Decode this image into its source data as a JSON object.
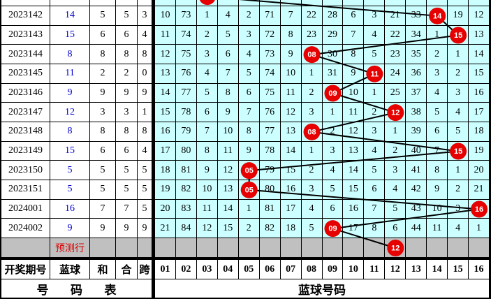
{
  "colors": {
    "grid_bg": "#ccffff",
    "row_bg": "#ffffff",
    "prediction_bg": "#c0c0c0",
    "circle_fill": "#e60000",
    "circle_text": "#ffffff",
    "blue_value_text": "#0000cc",
    "prediction_text": "#dd0000",
    "line": "#000000",
    "border": "#000000",
    "text": "#000000"
  },
  "header": {
    "period": "开奖期号",
    "blue": "蓝球",
    "sum": "和",
    "he": "合",
    "span": "跨",
    "balls": [
      "01",
      "02",
      "03",
      "04",
      "05",
      "06",
      "07",
      "08",
      "09",
      "10",
      "11",
      "12",
      "13",
      "14",
      "15",
      "16"
    ]
  },
  "footer": {
    "left": "号 码 表",
    "right": "蓝球号码"
  },
  "partial_top_row": {
    "hit_col": 3
  },
  "rows": [
    {
      "period": "2023142",
      "blue": "14",
      "sum": "5",
      "he": "5",
      "span": "3",
      "hit_col": 14,
      "hit_label": "14",
      "cells": [
        "10",
        "73",
        "1",
        "4",
        "2",
        "71",
        "7",
        "22",
        "28",
        "6",
        "3",
        "21",
        "33",
        "14",
        "19",
        "12"
      ]
    },
    {
      "period": "2023143",
      "blue": "15",
      "sum": "6",
      "he": "6",
      "span": "4",
      "hit_col": 15,
      "hit_label": "15",
      "cells": [
        "11",
        "74",
        "2",
        "5",
        "3",
        "72",
        "8",
        "23",
        "29",
        "7",
        "4",
        "22",
        "34",
        "1",
        "15",
        "13"
      ]
    },
    {
      "period": "2023144",
      "blue": "8",
      "sum": "8",
      "he": "8",
      "span": "8",
      "hit_col": 8,
      "hit_label": "08",
      "cells": [
        "12",
        "75",
        "3",
        "6",
        "4",
        "73",
        "9",
        "08",
        "30",
        "8",
        "5",
        "23",
        "35",
        "2",
        "1",
        "14"
      ]
    },
    {
      "period": "2023145",
      "blue": "11",
      "sum": "2",
      "he": "2",
      "span": "0",
      "hit_col": 11,
      "hit_label": "11",
      "cells": [
        "13",
        "76",
        "4",
        "7",
        "5",
        "74",
        "10",
        "1",
        "31",
        "9",
        "11",
        "24",
        "36",
        "3",
        "2",
        "15"
      ]
    },
    {
      "period": "2023146",
      "blue": "9",
      "sum": "9",
      "he": "9",
      "span": "9",
      "hit_col": 9,
      "hit_label": "09",
      "cells": [
        "14",
        "77",
        "5",
        "8",
        "6",
        "75",
        "11",
        "2",
        "09",
        "10",
        "1",
        "25",
        "37",
        "4",
        "3",
        "16"
      ]
    },
    {
      "period": "2023147",
      "blue": "12",
      "sum": "3",
      "he": "3",
      "span": "1",
      "hit_col": 12,
      "hit_label": "12",
      "cells": [
        "15",
        "78",
        "6",
        "9",
        "7",
        "76",
        "12",
        "3",
        "1",
        "11",
        "2",
        "12",
        "38",
        "5",
        "4",
        "17"
      ]
    },
    {
      "period": "2023148",
      "blue": "8",
      "sum": "8",
      "he": "8",
      "span": "8",
      "hit_col": 8,
      "hit_label": "08",
      "cells": [
        "16",
        "79",
        "7",
        "10",
        "8",
        "77",
        "13",
        "08",
        "2",
        "12",
        "3",
        "1",
        "39",
        "6",
        "5",
        "18"
      ]
    },
    {
      "period": "2023149",
      "blue": "15",
      "sum": "6",
      "he": "6",
      "span": "4",
      "hit_col": 15,
      "hit_label": "15",
      "cells": [
        "17",
        "80",
        "8",
        "11",
        "9",
        "78",
        "14",
        "1",
        "3",
        "13",
        "4",
        "2",
        "40",
        "7",
        "15",
        "19"
      ]
    },
    {
      "period": "2023150",
      "blue": "5",
      "sum": "5",
      "he": "5",
      "span": "5",
      "hit_col": 5,
      "hit_label": "05",
      "cells": [
        "18",
        "81",
        "9",
        "12",
        "05",
        "79",
        "15",
        "2",
        "4",
        "14",
        "5",
        "3",
        "41",
        "8",
        "1",
        "20"
      ]
    },
    {
      "period": "2023151",
      "blue": "5",
      "sum": "5",
      "he": "5",
      "span": "5",
      "hit_col": 5,
      "hit_label": "05",
      "cells": [
        "19",
        "82",
        "10",
        "13",
        "05",
        "80",
        "16",
        "3",
        "5",
        "15",
        "6",
        "4",
        "42",
        "9",
        "2",
        "21"
      ]
    },
    {
      "period": "2024001",
      "blue": "16",
      "sum": "7",
      "he": "7",
      "span": "5",
      "hit_col": 16,
      "hit_label": "16",
      "cells": [
        "20",
        "83",
        "11",
        "14",
        "1",
        "81",
        "17",
        "4",
        "6",
        "16",
        "7",
        "5",
        "43",
        "10",
        "3",
        "16"
      ]
    },
    {
      "period": "2024002",
      "blue": "9",
      "sum": "9",
      "he": "9",
      "span": "9",
      "hit_col": 9,
      "hit_label": "09",
      "cells": [
        "21",
        "84",
        "12",
        "15",
        "2",
        "82",
        "18",
        "5",
        "09",
        "17",
        "8",
        "6",
        "44",
        "11",
        "4",
        "1"
      ]
    }
  ],
  "prediction_row": {
    "label": "预测行",
    "hit_col": 12,
    "hit_label": "12"
  },
  "chart_data": {
    "type": "line",
    "categories": [
      "2023142",
      "2023143",
      "2023144",
      "2023145",
      "2023146",
      "2023147",
      "2023148",
      "2023149",
      "2023150",
      "2023151",
      "2024001",
      "2024002",
      "预测行"
    ],
    "series": [
      {
        "name": "蓝球",
        "values": [
          14,
          15,
          8,
          11,
          9,
          12,
          8,
          15,
          5,
          5,
          16,
          9,
          12
        ]
      }
    ],
    "xlabel": "开奖期号",
    "ylabel": "蓝球号码",
    "ylim": [
      1,
      16
    ],
    "legend_position": "none",
    "grid": true
  }
}
